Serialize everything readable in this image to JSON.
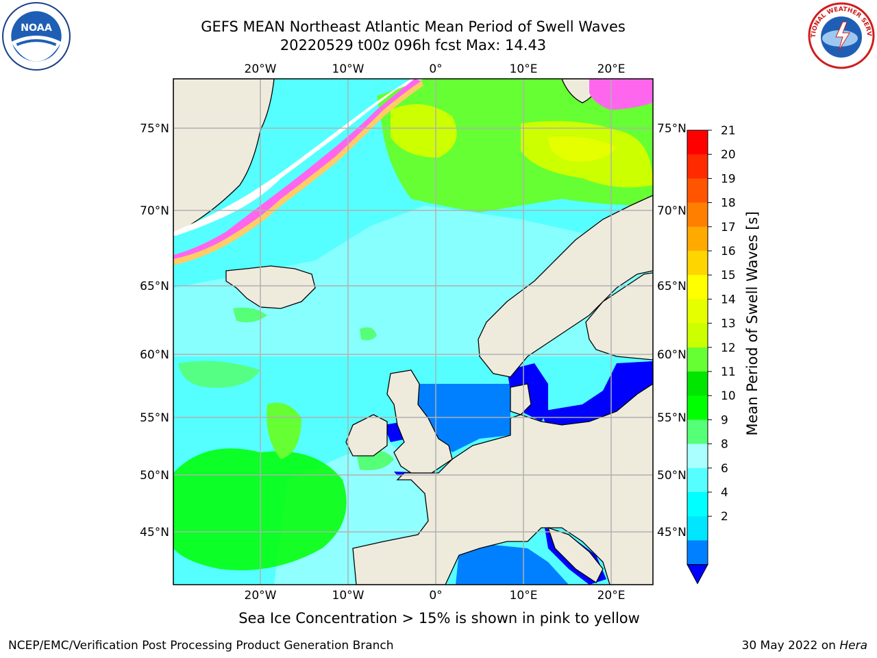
{
  "title": {
    "line1": "GEFS MEAN Northeast Atlantic Mean Period of Swell Waves",
    "line2": "20220529 t00z 096h fcst   Max: 14.43"
  },
  "logos": {
    "noaa_text": "NOAA",
    "nws_text": "NATIONAL WEATHER SERVICE"
  },
  "map": {
    "lon_labels": [
      "20°W",
      "10°W",
      "0°",
      "10°E",
      "20°E"
    ],
    "lat_labels": [
      "75°N",
      "70°N",
      "65°N",
      "60°N",
      "55°N",
      "50°N",
      "45°N"
    ]
  },
  "colorbar": {
    "label": "Mean Period of Swell Waves [s]",
    "ticks": [
      "21",
      "20",
      "19",
      "18",
      "17",
      "16",
      "15",
      "14",
      "13",
      "12",
      "11",
      "10",
      "9",
      "8",
      "6",
      "4",
      "2"
    ],
    "colors": [
      "#ff0000",
      "#ff2a00",
      "#ff5500",
      "#ff8000",
      "#ffaa00",
      "#ffd500",
      "#ffff00",
      "#e6ff00",
      "#ccff00",
      "#66ff33",
      "#00e600",
      "#00ff00",
      "#55ff77",
      "#aaffff",
      "#55ffff",
      "#00ffff",
      "#00e6ff",
      "#0080ff"
    ],
    "extend_color": "#0000ff"
  },
  "note": "Sea Ice Concentration > 15% is shown in pink to yellow",
  "footer": {
    "credit": "NCEP/EMC/Verification Post Processing Product Generation Branch",
    "date_prefix": "30 May 2022 on ",
    "date_machine": "Hera"
  }
}
